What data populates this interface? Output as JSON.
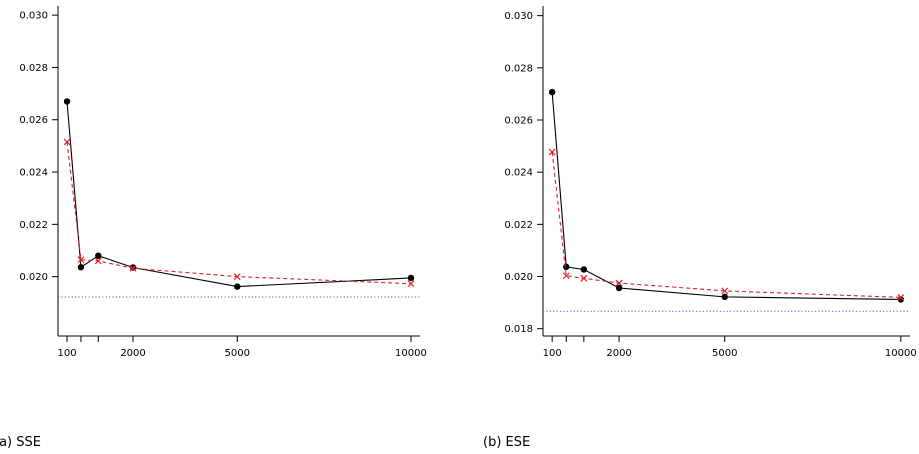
{
  "chart_data": [
    {
      "type": "line",
      "caption": "(a) SSE",
      "x": [
        100,
        500,
        1000,
        2000,
        5000,
        10000
      ],
      "xticks": [
        100,
        2000,
        5000,
        10000
      ],
      "xtick_labels": [
        "100",
        "2000",
        "5000",
        "10000"
      ],
      "xlim": [
        -160,
        10260
      ],
      "ylim": [
        0.01773,
        0.03035
      ],
      "yticks": [
        0.02,
        0.022,
        0.024,
        0.026,
        0.028,
        0.03
      ],
      "ytick_labels": [
        "0.020",
        "0.022",
        "0.024",
        "0.026",
        "0.028",
        "0.030"
      ],
      "series": [
        {
          "values": [
            0.0267,
            0.02036,
            0.0208,
            0.02035,
            0.01962,
            0.01995
          ],
          "color": "#000000",
          "line": "solid",
          "marker": "filled-circle"
        },
        {
          "values": [
            0.02515,
            0.02065,
            0.0206,
            0.02032,
            0.02,
            0.01973
          ],
          "color": "#e0202a",
          "line": "dashed",
          "marker": "cross"
        }
      ],
      "reference_line": {
        "value": 0.01922,
        "color": "#5a5acd",
        "line": "dotted"
      },
      "grid": false
    },
    {
      "type": "line",
      "caption": "(b) ESE",
      "x": [
        100,
        500,
        1000,
        2000,
        5000,
        10000
      ],
      "xticks": [
        100,
        2000,
        5000,
        10000
      ],
      "xtick_labels": [
        "100",
        "2000",
        "5000",
        "10000"
      ],
      "xlim": [
        -160,
        10260
      ],
      "ylim": [
        0.01772,
        0.03037
      ],
      "yticks": [
        0.018,
        0.02,
        0.022,
        0.024,
        0.026,
        0.028,
        0.03
      ],
      "ytick_labels": [
        "0.018",
        "0.020",
        "0.022",
        "0.024",
        "0.026",
        "0.028",
        "0.030"
      ],
      "series": [
        {
          "values": [
            0.02707,
            0.02037,
            0.02027,
            0.01956,
            0.01922,
            0.01912
          ],
          "color": "#000000",
          "line": "solid",
          "marker": "filled-circle"
        },
        {
          "values": [
            0.02477,
            0.02003,
            0.01993,
            0.01975,
            0.01945,
            0.0192
          ],
          "color": "#e0202a",
          "line": "dashed",
          "marker": "cross"
        }
      ],
      "reference_line": {
        "value": 0.01867,
        "color": "#5a5acd",
        "line": "dotted"
      },
      "grid": false
    }
  ]
}
